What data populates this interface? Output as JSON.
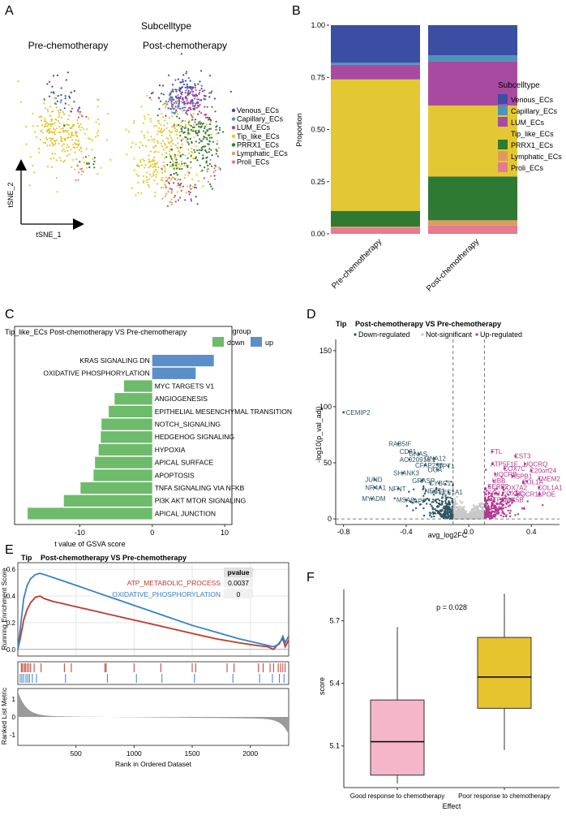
{
  "panels": {
    "a": "A",
    "b": "B",
    "c": "C",
    "d": "D",
    "e": "E",
    "f": "F"
  },
  "colors": {
    "Venous_ECs": "#3a4ea3",
    "Capillary_ECs": "#4f93ba",
    "LUM_ECs": "#a84ba0",
    "Tip_like_ECs": "#e3c834",
    "PRRX1_ECs": "#2f7a33",
    "Lymphatic_ECs": "#e09a5e",
    "Proli_ECs": "#e57a90",
    "gsva_up": "#5b8fc9",
    "gsva_down": "#6dbb6b",
    "down_reg": "#2f5563",
    "not_sig": "#c8c8c8",
    "up_reg": "#b43594",
    "atp": "#c0392b",
    "oxphos": "#3b82c4",
    "box_good": "#f4b6c8",
    "box_poor": "#e6c430"
  },
  "chart_data": [
    {
      "id": "A",
      "type": "scatter",
      "legend_title": "Subcelltype",
      "facets": [
        "Pre-chemotherapy",
        "Post-chemotherapy"
      ],
      "xlabel": "tSNE_1",
      "ylabel": "tSNE_2",
      "legend": [
        "Venous_ECs",
        "Capillary_ECs",
        "LUM_ECs",
        "Tip_like_ECs",
        "PRRX1_ECs",
        "Lymphatic_ECs",
        "Proli_ECs"
      ]
    },
    {
      "id": "B",
      "type": "bar",
      "stacked": true,
      "categories": [
        "Pre-chemotherapy",
        "Post-chemotherapy"
      ],
      "ylabel": "Proportion",
      "ylim": [
        0,
        1
      ],
      "yticks": [
        "0.00",
        "0.25",
        "0.50",
        "0.75",
        "1.00"
      ],
      "legend_title": "Subcelltype",
      "series": [
        {
          "name": "Proli_ECs",
          "values": [
            0.03,
            0.04
          ]
        },
        {
          "name": "Lymphatic_ECs",
          "values": [
            0.005,
            0.025
          ]
        },
        {
          "name": "PRRX1_ECs",
          "values": [
            0.075,
            0.21
          ]
        },
        {
          "name": "Tip_like_ECs",
          "values": [
            0.63,
            0.34
          ]
        },
        {
          "name": "LUM_ECs",
          "values": [
            0.07,
            0.21
          ]
        },
        {
          "name": "Capillary_ECs",
          "values": [
            0.01,
            0.03
          ]
        },
        {
          "name": "Venous_ECs",
          "values": [
            0.18,
            0.145
          ]
        }
      ]
    },
    {
      "id": "C",
      "type": "bar",
      "orientation": "horizontal",
      "title": "Tip_like_ECs Post-chemotherapy VS Pre-chemotherapy",
      "legend_title": "group",
      "legend": [
        "down",
        "up"
      ],
      "xlabel": "t value of GSVA score",
      "xlim": [
        -19,
        11
      ],
      "xticks": [
        -10,
        0,
        10
      ],
      "bars": [
        {
          "label": "KRAS SIGNALING DN",
          "value": 8.5,
          "group": "up"
        },
        {
          "label": "OXIDATIVE PHOSPHORYLATION",
          "value": 6.0,
          "group": "up"
        },
        {
          "label": "MYC TARGETS V1",
          "value": -3.9,
          "group": "down"
        },
        {
          "label": "ANGIOGENESIS",
          "value": -5.2,
          "group": "down"
        },
        {
          "label": "EPITHELIAL MESENCHYMAL TRANSITION",
          "value": -6.0,
          "group": "down"
        },
        {
          "label": "NOTCH_SIGNALING",
          "value": -7.0,
          "group": "down"
        },
        {
          "label": "HEDGEHOG SIGNALING",
          "value": -7.1,
          "group": "down"
        },
        {
          "label": "HYPOXIA",
          "value": -7.4,
          "group": "down"
        },
        {
          "label": "APICAL SURFACE",
          "value": -7.9,
          "group": "down"
        },
        {
          "label": "APOPTOSIS",
          "value": -8.1,
          "group": "down"
        },
        {
          "label": "TNFA SIGNALING VIA NFKB",
          "value": -9.9,
          "group": "down"
        },
        {
          "label": "PI3K AKT MTOR SIGNALING",
          "value": -12.2,
          "group": "down"
        },
        {
          "label": "APICAL JUNCTION",
          "value": -17.2,
          "group": "down"
        }
      ]
    },
    {
      "id": "D",
      "type": "scatter",
      "title": "Post-chemotherapy VS Pre-chemotherapy",
      "tag": "Tip",
      "legend": [
        "Down-regulated",
        "Not-significant",
        "Up-regulated"
      ],
      "xlabel": "avg_log2FC",
      "ylabel": "-log10(p_val_adj)",
      "xlim": [
        -0.85,
        0.58
      ],
      "ylim": [
        -5,
        160
      ],
      "xticks": [
        "-0.8",
        "-0.4",
        "0.0",
        "0.4"
      ],
      "yticks": [
        "0",
        "50",
        "100",
        "150"
      ],
      "thresholds_x": [
        -0.1,
        0.1
      ],
      "threshold_y": 0,
      "labeled_down": [
        {
          "gene": "CEMIP2",
          "x": -0.8,
          "y": 95
        },
        {
          "gene": "RAB5IF",
          "x": -0.45,
          "y": 67
        },
        {
          "gene": "CD81",
          "x": -0.38,
          "y": 60
        },
        {
          "gene": "GNAS",
          "x": -0.32,
          "y": 58
        },
        {
          "gene": "AC020916.1",
          "x": -0.38,
          "y": 53
        },
        {
          "gene": "GNA12",
          "x": -0.22,
          "y": 54
        },
        {
          "gene": "CFAP298",
          "x": -0.28,
          "y": 48
        },
        {
          "gene": "SHANK3",
          "x": -0.42,
          "y": 41
        },
        {
          "gene": "OGA",
          "x": -0.2,
          "y": 44
        },
        {
          "gene": "TPT1",
          "x": -0.13,
          "y": 47
        },
        {
          "gene": "JUND",
          "x": -0.6,
          "y": 35
        },
        {
          "gene": "GRASP",
          "x": -0.3,
          "y": 34
        },
        {
          "gene": "CYBC1",
          "x": -0.19,
          "y": 32
        },
        {
          "gene": "NR4A1",
          "x": -0.6,
          "y": 28
        },
        {
          "gene": "NFNT",
          "x": -0.45,
          "y": 27
        },
        {
          "gene": "NEAT1",
          "x": -0.22,
          "y": 25
        },
        {
          "gene": "EEF1A1",
          "x": -0.13,
          "y": 24
        },
        {
          "gene": "MYADM",
          "x": -0.62,
          "y": 18
        },
        {
          "gene": "MSA8",
          "x": -0.4,
          "y": 17
        },
        {
          "gene": "APP",
          "x": -0.29,
          "y": 16
        }
      ],
      "labeled_up": [
        {
          "gene": "FTL",
          "x": 0.15,
          "y": 60
        },
        {
          "gene": "CST3",
          "x": 0.3,
          "y": 56
        },
        {
          "gene": "ATP5F1E",
          "x": 0.15,
          "y": 49
        },
        {
          "gene": "UQCRQ",
          "x": 0.36,
          "y": 49
        },
        {
          "gene": "COX7C",
          "x": 0.23,
          "y": 45
        },
        {
          "gene": "C20orf24",
          "x": 0.4,
          "y": 43
        },
        {
          "gene": "UQCRB",
          "x": 0.17,
          "y": 40
        },
        {
          "gene": "HSPB1",
          "x": 0.28,
          "y": 38
        },
        {
          "gene": "TMEM2",
          "x": 0.45,
          "y": 36
        },
        {
          "gene": "UBB",
          "x": 0.16,
          "y": 34
        },
        {
          "gene": "COL1A",
          "x": 0.35,
          "y": 33
        },
        {
          "gene": "SERF2",
          "x": 0.13,
          "y": 29
        },
        {
          "gene": "COX7A2",
          "x": 0.22,
          "y": 28
        },
        {
          "gene": "COL1A1",
          "x": 0.45,
          "y": 28
        },
        {
          "gene": "FAU",
          "x": 0.13,
          "y": 23
        },
        {
          "gene": "COX6C",
          "x": 0.22,
          "y": 23
        },
        {
          "gene": "UQCR11",
          "x": 0.31,
          "y": 22
        },
        {
          "gene": "APOE",
          "x": 0.45,
          "y": 22
        },
        {
          "gene": "ATP5MG",
          "x": 0.14,
          "y": 17
        },
        {
          "gene": "COX5B",
          "x": 0.22,
          "y": 17
        }
      ]
    },
    {
      "id": "E",
      "type": "line",
      "title": "Post-chemotherapy VS Pre-chemotherapy",
      "tag": "Tip",
      "ylabel": "Running Enrichment Score",
      "ylabel2": "Ranked List Metric",
      "xlabel": "Rank in Ordered Dataset",
      "xlim": [
        0,
        2330
      ],
      "xticks": [
        500,
        1000,
        1500,
        2000
      ],
      "ylim": [
        -0.05,
        0.65
      ],
      "yticks": [
        "0.0",
        "0.2",
        "0.4",
        "0.6"
      ],
      "metric_yticks": [
        "1",
        "0",
        "-1"
      ],
      "table_header": "pvalue",
      "series": [
        {
          "name": "ATP_METABOLIC_PROCESS",
          "pvalue": "0.0037",
          "x": [
            0,
            20,
            50,
            80,
            110,
            150,
            190,
            230,
            300,
            400,
            500,
            700,
            900,
            1100,
            1300,
            1500,
            1700,
            1900,
            2050,
            2150,
            2200,
            2250,
            2280,
            2300,
            2330
          ],
          "y": [
            0,
            0.08,
            0.22,
            0.3,
            0.35,
            0.39,
            0.4,
            0.38,
            0.36,
            0.34,
            0.32,
            0.28,
            0.24,
            0.2,
            0.16,
            0.12,
            0.08,
            0.05,
            0.03,
            0.02,
            0.0,
            0.05,
            0.08,
            0.02,
            0.07
          ]
        },
        {
          "name": "OXIDATIVE_PHOSPHORYLATION",
          "pvalue": "0",
          "x": [
            0,
            20,
            50,
            80,
            110,
            150,
            190,
            230,
            300,
            400,
            500,
            700,
            900,
            1100,
            1300,
            1500,
            1700,
            1900,
            2050,
            2150,
            2200,
            2250,
            2280,
            2300,
            2330
          ],
          "y": [
            0,
            0.15,
            0.38,
            0.48,
            0.53,
            0.56,
            0.57,
            0.56,
            0.54,
            0.51,
            0.48,
            0.42,
            0.36,
            0.3,
            0.24,
            0.18,
            0.13,
            0.08,
            0.05,
            0.03,
            0.02,
            0.04,
            0.1,
            0.05,
            0.1
          ]
        }
      ],
      "hits_atp": [
        30,
        40,
        55,
        65,
        80,
        95,
        110,
        140,
        200,
        400,
        460,
        750,
        760,
        1000,
        1230,
        1500,
        1530,
        1800,
        1860,
        2070,
        2110,
        2170,
        2200,
        2240,
        2260,
        2280,
        2300
      ],
      "hits_oxphos": [
        20,
        35,
        50,
        70,
        85,
        100,
        125,
        160,
        410,
        770,
        1020,
        1240,
        1520,
        1850,
        2080,
        2190,
        2250,
        2290
      ]
    },
    {
      "id": "F",
      "type": "box",
      "categories": [
        "Good response to chemotherapy",
        "Poor response to chemotherapy"
      ],
      "xlabel": "Effect",
      "ylabel": "score",
      "ylim": [
        4.9,
        5.85
      ],
      "yticks": [
        "5.1",
        "5.4",
        "5.7"
      ],
      "annotation": "p = 0.028",
      "boxes": [
        {
          "min": 4.92,
          "q1": 4.96,
          "median": 5.12,
          "q3": 5.32,
          "max": 5.67
        },
        {
          "min": 5.08,
          "q1": 5.28,
          "median": 5.43,
          "q3": 5.62,
          "max": 5.83
        }
      ]
    }
  ]
}
